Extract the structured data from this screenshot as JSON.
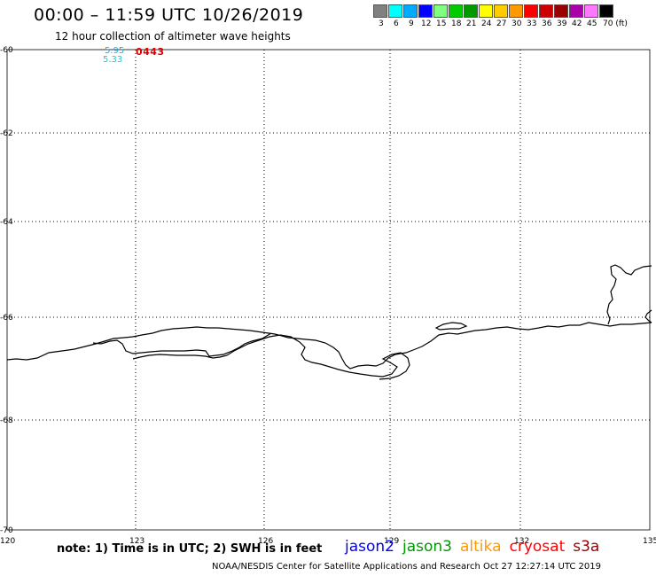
{
  "header": {
    "title": "00:00 – 11:59 UTC 10/26/2019",
    "subtitle": "12 hour collection of altimeter wave heights"
  },
  "color_scale": {
    "labels": [
      "3",
      "6",
      "9",
      "12",
      "15",
      "18",
      "21",
      "24",
      "27",
      "30",
      "33",
      "36",
      "39",
      "42",
      "45",
      "70 (ft)"
    ],
    "colors": [
      "#808080",
      "#00ffff",
      "#00aaff",
      "#0000ff",
      "#7fff7f",
      "#00cc00",
      "#009900",
      "#ffff00",
      "#ffcc00",
      "#ff9900",
      "#ff0000",
      "#cc0000",
      "#990000",
      "#aa00aa",
      "#ff77ff",
      "#000000"
    ]
  },
  "map": {
    "y_labels": [
      "-60",
      "-62",
      "-64",
      "-66",
      "-68",
      "-70"
    ],
    "x_labels": [
      "120",
      "123",
      "126",
      "129",
      "132",
      "135"
    ]
  },
  "observations": {
    "value_1": "5.95",
    "value_2": "5.33",
    "code": "0443"
  },
  "footer": {
    "note": "note: 1) Time is in UTC; 2) SWH is in feet",
    "satellites": [
      {
        "name": "jason2",
        "color": "#0000ff"
      },
      {
        "name": "jason3",
        "color": "#009900"
      },
      {
        "name": "altika",
        "color": "#ff9900"
      },
      {
        "name": "cryosat",
        "color": "#ff0000"
      },
      {
        "name": "s3a",
        "color": "#990000"
      }
    ],
    "credit": "NOAA/NESDIS Center for Satellite Applications and Research    Oct 27 12:27:14 UTC 2019"
  }
}
